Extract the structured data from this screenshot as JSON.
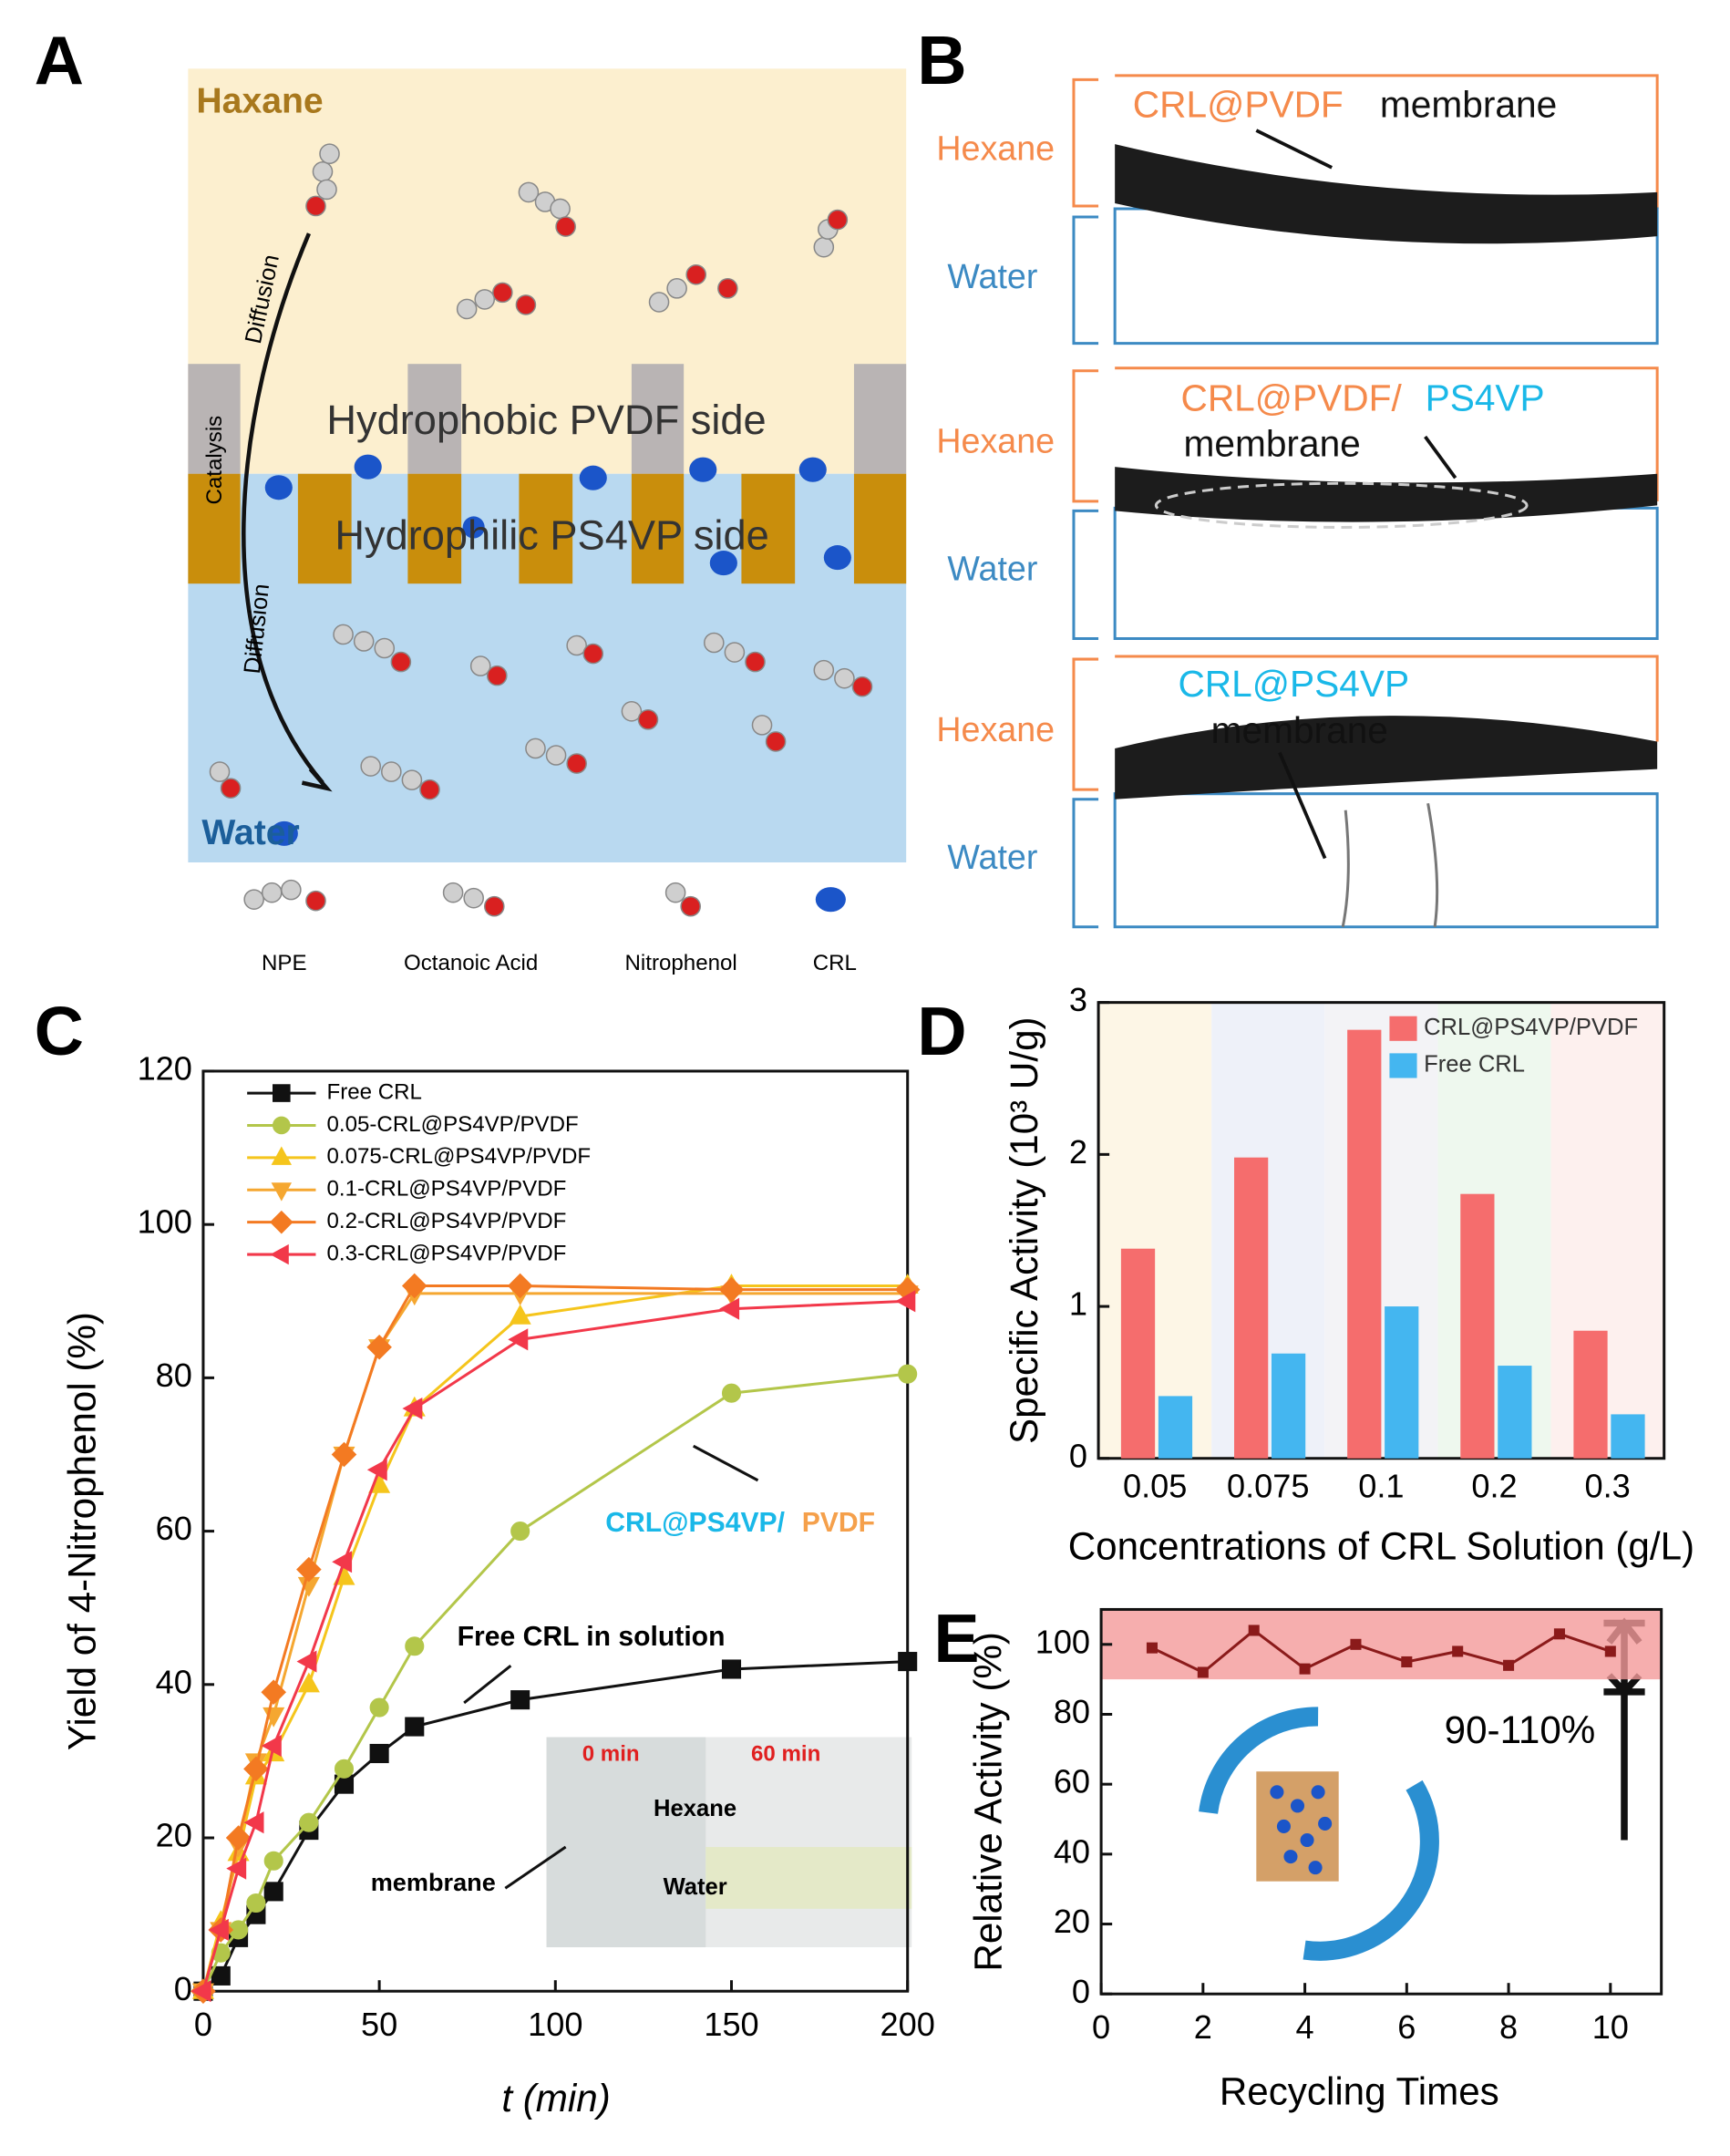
{
  "panel_a": {
    "label": "A",
    "top_label": "Haxane",
    "bottom_label": "Water",
    "upper_layer": "Hydrophobic PVDF side",
    "lower_layer": "Hydrophilic PS4VP side",
    "diffusion_top": "Diffusion",
    "diffusion_bottom": "Diffusion",
    "catalysis": "Catalysis",
    "legend": [
      "NPE",
      "Octanoic Acid",
      "Nitrophenol",
      "CRL"
    ]
  },
  "panel_b": {
    "label": "B",
    "rows": [
      {
        "hexane": "Hexane",
        "water": "Water",
        "title": [
          {
            "text": "CRL@PVDF",
            "color": "#f58a4b"
          },
          {
            "text": "membrane",
            "color": "#111111"
          }
        ]
      },
      {
        "hexane": "Hexane",
        "water": "Water",
        "title": [
          {
            "text": "CRL@PVDF/",
            "color": "#f58a4b"
          },
          {
            "text": "PS4VP",
            "color": "#1ab8e8"
          },
          {
            "text": "membrane",
            "color": "#111111"
          }
        ]
      },
      {
        "hexane": "Hexane",
        "water": "Water",
        "title": [
          {
            "text": "CRL@PS4VP",
            "color": "#1ab8e8"
          },
          {
            "text": "membrane",
            "color": "#111111"
          }
        ]
      }
    ]
  },
  "chart_data": [
    {
      "type": "line",
      "panel_label": "C",
      "xlabel": "t (min)",
      "ylabel": "Yield of 4-Nitrophenol (%)",
      "x": [
        0,
        5,
        10,
        15,
        20,
        30,
        40,
        50,
        60,
        90,
        150,
        200
      ],
      "xlim": [
        0,
        200
      ],
      "xticks": [
        0,
        50,
        100,
        150,
        200
      ],
      "ylim": [
        0,
        120
      ],
      "yticks": [
        0,
        20,
        40,
        60,
        80,
        100,
        120
      ],
      "series": [
        {
          "name": "Free CRL",
          "color": "#111111",
          "marker": "square",
          "values": [
            0,
            2,
            7,
            10,
            13,
            21,
            27,
            31,
            34.5,
            38,
            42,
            43
          ]
        },
        {
          "name": "0.05-CRL@PS4VP/PVDF",
          "color": "#b3c64a",
          "marker": "circle",
          "values": [
            0,
            5,
            8,
            11.5,
            17,
            22,
            29,
            37,
            45,
            60,
            78,
            80.5
          ]
        },
        {
          "name": "0.075-CRL@PS4VP/PVDF",
          "color": "#f5c51c",
          "marker": "triangle-up",
          "values": [
            0,
            9,
            18,
            28,
            31,
            40,
            54,
            66,
            76,
            88,
            92,
            92
          ]
        },
        {
          "name": "0.1-CRL@PS4VP/PVDF",
          "color": "#f5a731",
          "marker": "triangle-down",
          "values": [
            0,
            8,
            19,
            30,
            36,
            53,
            70,
            84,
            91,
            91,
            91,
            91
          ]
        },
        {
          "name": "0.2-CRL@PS4VP/PVDF",
          "color": "#f37a22",
          "marker": "diamond",
          "values": [
            0,
            8,
            20,
            29,
            39,
            55,
            70,
            84,
            92,
            92,
            91.5,
            91.5
          ]
        },
        {
          "name": "0.3-CRL@PS4VP/PVDF",
          "color": "#f2384a",
          "marker": "triangle-left",
          "values": [
            0,
            8,
            16,
            22,
            32,
            43,
            56,
            68,
            76,
            85,
            89,
            90
          ]
        }
      ],
      "annotations": {
        "highlight_a": "CRL@PS4VP/",
        "highlight_b": "PVDF",
        "free": "Free CRL in solution",
        "inset_0": "0 min",
        "inset_60": "60 min",
        "inset_hexane": "Hexane",
        "inset_water": "Water",
        "inset_membrane": "membrane"
      }
    },
    {
      "type": "bar",
      "panel_label": "D",
      "xlabel": "Concentrations of CRL Solution (g/L)",
      "ylabel": "Specific Activity (10³ U/g)",
      "categories": [
        "0.05",
        "0.075",
        "0.1",
        "0.2",
        "0.3"
      ],
      "ylim": [
        0,
        3
      ],
      "yticks": [
        0,
        1,
        2,
        3
      ],
      "legend": "upper right",
      "series": [
        {
          "name": "CRL@PS4VP/PVDF",
          "color": "#f56d6d",
          "values": [
            1.38,
            1.98,
            2.82,
            1.74,
            0.84
          ]
        },
        {
          "name": "Free CRL",
          "color": "#44b6f0",
          "values": [
            0.41,
            0.69,
            1.0,
            0.61,
            0.29
          ]
        }
      ]
    },
    {
      "type": "line",
      "panel_label": "E",
      "xlabel": "Recycling Times",
      "ylabel": "Relative Activity (%)",
      "x": [
        1,
        2,
        3,
        4,
        5,
        6,
        7,
        8,
        9,
        10
      ],
      "xlim": [
        0,
        11
      ],
      "xticks": [
        0,
        2,
        4,
        6,
        8,
        10
      ],
      "ylim": [
        0,
        110
      ],
      "yticks": [
        0,
        20,
        40,
        60,
        80,
        100
      ],
      "band": [
        90,
        110
      ],
      "band_label": "90-110%",
      "series": [
        {
          "color": "#8b1a1a",
          "marker": "square",
          "values": [
            99,
            92,
            104,
            93,
            100,
            95,
            98,
            94,
            103,
            98
          ]
        }
      ]
    }
  ]
}
